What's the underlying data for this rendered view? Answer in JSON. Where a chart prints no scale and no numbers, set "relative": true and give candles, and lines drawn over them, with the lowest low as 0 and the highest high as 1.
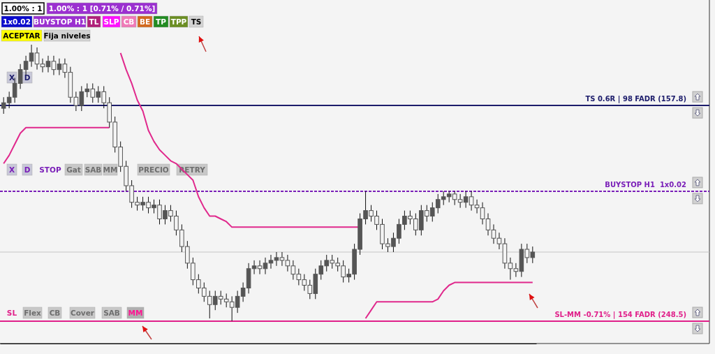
{
  "chart_data": {
    "type": "candlestick",
    "relative": true,
    "color": "#555555",
    "categories": [
      null,
      null,
      null,
      null,
      null,
      null,
      null,
      null,
      null,
      null,
      null,
      null,
      null,
      null,
      null,
      null,
      null,
      null,
      null,
      null,
      null,
      null,
      null,
      null,
      null,
      null,
      null,
      null,
      null,
      null,
      null,
      null,
      null,
      null,
      null,
      null,
      null,
      null,
      null,
      null,
      null,
      null,
      null,
      null,
      null,
      null,
      null,
      null,
      null,
      null,
      null,
      null,
      null,
      null,
      null,
      null,
      null,
      null,
      null,
      null,
      null,
      null,
      null,
      null,
      null,
      null,
      null,
      null,
      null,
      null,
      null,
      null,
      null,
      null,
      null,
      null,
      null,
      null,
      null,
      null,
      null,
      null,
      null,
      null,
      null,
      null,
      null,
      null,
      null,
      null,
      null,
      null,
      null,
      null,
      null,
      null
    ],
    "ohlc": [
      [
        0.77,
        0.81,
        0.75,
        0.79
      ],
      [
        0.79,
        0.83,
        0.77,
        0.81
      ],
      [
        0.81,
        0.88,
        0.79,
        0.86
      ],
      [
        0.86,
        0.93,
        0.84,
        0.91
      ],
      [
        0.91,
        0.96,
        0.89,
        0.94
      ],
      [
        0.94,
        1,
        0.92,
        0.97
      ],
      [
        0.97,
        0.99,
        0.91,
        0.93
      ],
      [
        0.93,
        0.95,
        0.9,
        0.92
      ],
      [
        0.92,
        0.96,
        0.9,
        0.94
      ],
      [
        0.94,
        0.96,
        0.89,
        0.91
      ],
      [
        0.91,
        0.95,
        0.89,
        0.93
      ],
      [
        0.93,
        0.95,
        0.88,
        0.9
      ],
      [
        0.9,
        0.92,
        0.79,
        0.81
      ],
      [
        0.81,
        0.83,
        0.76,
        0.78
      ],
      [
        0.78,
        0.85,
        0.76,
        0.83
      ],
      [
        0.83,
        0.86,
        0.81,
        0.84
      ],
      [
        0.84,
        0.86,
        0.79,
        0.81
      ],
      [
        0.81,
        0.85,
        0.79,
        0.83
      ],
      [
        0.83,
        0.85,
        0.77,
        0.79
      ],
      [
        0.79,
        0.81,
        0.7,
        0.72
      ],
      [
        0.72,
        0.74,
        0.61,
        0.63
      ],
      [
        0.63,
        0.65,
        0.54,
        0.56
      ],
      [
        0.56,
        0.58,
        0.47,
        0.49
      ],
      [
        0.49,
        0.51,
        0.41,
        0.43
      ],
      [
        0.43,
        0.45,
        0.4,
        0.42
      ],
      [
        0.42,
        0.45,
        0.4,
        0.43
      ],
      [
        0.43,
        0.45,
        0.39,
        0.41
      ],
      [
        0.41,
        0.44,
        0.39,
        0.42
      ],
      [
        0.42,
        0.44,
        0.35,
        0.37
      ],
      [
        0.37,
        0.42,
        0.35,
        0.4
      ],
      [
        0.4,
        0.42,
        0.36,
        0.38
      ],
      [
        0.38,
        0.4,
        0.31,
        0.33
      ],
      [
        0.33,
        0.35,
        0.25,
        0.27
      ],
      [
        0.27,
        0.29,
        0.19,
        0.21
      ],
      [
        0.21,
        0.23,
        0.13,
        0.15
      ],
      [
        0.15,
        0.17,
        0.1,
        0.12
      ],
      [
        0.12,
        0.14,
        0.07,
        0.09
      ],
      [
        0.09,
        0.11,
        0.01,
        0.06
      ],
      [
        0.06,
        0.11,
        0.04,
        0.09
      ],
      [
        0.09,
        0.11,
        0.06,
        0.08
      ],
      [
        0.08,
        0.1,
        0.05,
        0.07
      ],
      [
        0.07,
        0.09,
        0,
        0.05
      ],
      [
        0.05,
        0.11,
        0.03,
        0.09
      ],
      [
        0.09,
        0.14,
        0.07,
        0.12
      ],
      [
        0.12,
        0.21,
        0.1,
        0.19
      ],
      [
        0.19,
        0.22,
        0.17,
        0.2
      ],
      [
        0.2,
        0.22,
        0.17,
        0.19
      ],
      [
        0.19,
        0.23,
        0.17,
        0.21
      ],
      [
        0.21,
        0.24,
        0.19,
        0.22
      ],
      [
        0.22,
        0.25,
        0.2,
        0.23
      ],
      [
        0.23,
        0.25,
        0.2,
        0.22
      ],
      [
        0.22,
        0.24,
        0.18,
        0.2
      ],
      [
        0.2,
        0.22,
        0.15,
        0.17
      ],
      [
        0.17,
        0.19,
        0.13,
        0.15
      ],
      [
        0.15,
        0.17,
        0.11,
        0.13
      ],
      [
        0.13,
        0.15,
        0.08,
        0.1
      ],
      [
        0.1,
        0.19,
        0.08,
        0.17
      ],
      [
        0.17,
        0.22,
        0.15,
        0.2
      ],
      [
        0.2,
        0.24,
        0.18,
        0.22
      ],
      [
        0.22,
        0.24,
        0.19,
        0.21
      ],
      [
        0.21,
        0.23,
        0.18,
        0.2
      ],
      [
        0.2,
        0.22,
        0.14,
        0.16
      ],
      [
        0.16,
        0.19,
        0.14,
        0.17
      ],
      [
        0.17,
        0.28,
        0.15,
        0.26
      ],
      [
        0.26,
        0.39,
        0.24,
        0.37
      ],
      [
        0.37,
        0.47,
        0.35,
        0.4
      ],
      [
        0.4,
        0.42,
        0.36,
        0.38
      ],
      [
        0.38,
        0.4,
        0.33,
        0.35
      ],
      [
        0.35,
        0.37,
        0.26,
        0.28
      ],
      [
        0.28,
        0.3,
        0.25,
        0.27
      ],
      [
        0.27,
        0.32,
        0.25,
        0.3
      ],
      [
        0.3,
        0.37,
        0.28,
        0.35
      ],
      [
        0.35,
        0.4,
        0.33,
        0.38
      ],
      [
        0.38,
        0.4,
        0.35,
        0.37
      ],
      [
        0.37,
        0.39,
        0.31,
        0.33
      ],
      [
        0.33,
        0.42,
        0.31,
        0.4
      ],
      [
        0.4,
        0.42,
        0.36,
        0.38
      ],
      [
        0.38,
        0.43,
        0.36,
        0.41
      ],
      [
        0.41,
        0.46,
        0.39,
        0.44
      ],
      [
        0.44,
        0.47,
        0.42,
        0.45
      ],
      [
        0.45,
        0.47,
        0.43,
        0.46
      ],
      [
        0.46,
        0.47,
        0.42,
        0.44
      ],
      [
        0.44,
        0.46,
        0.41,
        0.43
      ],
      [
        0.43,
        0.47,
        0.41,
        0.45
      ],
      [
        0.45,
        0.47,
        0.4,
        0.42
      ],
      [
        0.42,
        0.44,
        0.39,
        0.41
      ],
      [
        0.41,
        0.43,
        0.35,
        0.37
      ],
      [
        0.37,
        0.39,
        0.31,
        0.33
      ],
      [
        0.33,
        0.35,
        0.28,
        0.3
      ],
      [
        0.3,
        0.32,
        0.26,
        0.28
      ],
      [
        0.28,
        0.3,
        0.19,
        0.21
      ],
      [
        0.21,
        0.23,
        0.15,
        0.19
      ],
      [
        0.19,
        0.21,
        0.16,
        0.18
      ],
      [
        0.18,
        0.28,
        0.16,
        0.26
      ],
      [
        0.26,
        0.28,
        0.21,
        0.23
      ],
      [
        0.23,
        0.27,
        0.21,
        0.25
      ]
    ],
    "series": [
      {
        "type": "line",
        "color": "#e0288c",
        "values": [
          0.57,
          0.6,
          0.64,
          0.68,
          0.7,
          0.7,
          0.7,
          0.7,
          0.7,
          0.7,
          0.7,
          0.7,
          0.7,
          0.7,
          0.7,
          0.7,
          0.7,
          0.7,
          0.7,
          0.7,
          null,
          null,
          null,
          null,
          null,
          null,
          null,
          null,
          null,
          null,
          null,
          null,
          null,
          null,
          null,
          null,
          null,
          null,
          null,
          null,
          null,
          null,
          null,
          null,
          null,
          null,
          null,
          null,
          null,
          null,
          null,
          null,
          null,
          null,
          null,
          null,
          null,
          null,
          null,
          null,
          null,
          null,
          null,
          null,
          null,
          null,
          null,
          null,
          null,
          null,
          null,
          null,
          null,
          null,
          null,
          null,
          null,
          null,
          null,
          null,
          null,
          null,
          null,
          null,
          null,
          null,
          null,
          null,
          null,
          null,
          null,
          null,
          null,
          null,
          null,
          null
        ]
      },
      {
        "type": "line",
        "color": "#e0288c",
        "values": [
          null,
          null,
          null,
          null,
          null,
          null,
          null,
          null,
          null,
          null,
          null,
          null,
          null,
          null,
          null,
          null,
          null,
          null,
          null,
          null,
          null,
          0.97,
          0.91,
          0.86,
          0.8,
          0.76,
          0.69,
          0.65,
          0.62,
          0.6,
          0.58,
          0.57,
          0.55,
          0.53,
          0.51,
          0.45,
          0.41,
          0.38,
          0.38,
          0.37,
          0.36,
          0.34,
          0.34,
          0.34,
          0.34,
          0.34,
          0.34,
          0.34,
          0.34,
          0.34,
          0.34,
          0.34,
          0.34,
          0.34,
          0.34,
          0.34,
          0.34,
          0.34,
          0.34,
          0.34,
          0.34,
          0.34,
          0.34,
          0.34,
          0.34,
          null,
          null,
          null,
          null,
          null,
          null,
          null,
          null,
          null,
          null,
          null,
          null,
          null,
          null,
          null,
          null,
          null,
          null,
          null,
          null,
          null,
          null,
          null,
          null,
          null,
          null,
          null,
          null,
          null,
          null,
          null
        ]
      },
      {
        "type": "line",
        "color": "#e0288c",
        "values": [
          null,
          null,
          null,
          null,
          null,
          null,
          null,
          null,
          null,
          null,
          null,
          null,
          null,
          null,
          null,
          null,
          null,
          null,
          null,
          null,
          null,
          null,
          null,
          null,
          null,
          null,
          null,
          null,
          null,
          null,
          null,
          null,
          null,
          null,
          null,
          null,
          null,
          null,
          null,
          null,
          null,
          null,
          null,
          null,
          null,
          null,
          null,
          null,
          null,
          null,
          null,
          null,
          null,
          null,
          null,
          null,
          null,
          null,
          null,
          null,
          null,
          null,
          null,
          null,
          null,
          0.01,
          0.04,
          0.07,
          0.07,
          0.07,
          0.07,
          0.07,
          0.07,
          0.07,
          0.07,
          0.07,
          0.07,
          0.07,
          0.08,
          0.11,
          0.13,
          0.14,
          0.14,
          0.14,
          0.14,
          0.14,
          0.14,
          0.14,
          0.14,
          0.14,
          0.14,
          0.14,
          0.14,
          0.14,
          0.14,
          0.14
        ]
      }
    ],
    "ref_lines": [
      {
        "axis": "y",
        "value": 0.78,
        "label": "TS 0.6R | 98 FADR (157.8)",
        "color": "#1c1c6b",
        "line_style": "solid"
      },
      {
        "axis": "y",
        "value": 0.47,
        "label": "BUYSTOP H1  1x0.02",
        "color": "#7a1fb8",
        "line_style": "dashed"
      },
      {
        "axis": "y",
        "value": 0.25,
        "color": "#c4c4c4",
        "line_style": "solid"
      },
      {
        "axis": "y",
        "value": 0,
        "label": "SL-MM -0.71% | 154 FADR (248.5)",
        "color": "#e0208a",
        "line_style": "solid"
      }
    ],
    "annotations": [
      "1.00% : 1",
      "1.00% : 1 [0.71% / 0.71%]",
      "1x0.02",
      "BUYSTOP H1",
      "TL",
      "SLP",
      "CB",
      "BE",
      "TP",
      "TPP",
      "TS",
      "ACEPTAR",
      "Fija niveles",
      "X",
      "D",
      "X",
      "D",
      "STOP",
      "Gat",
      "SAB",
      "MM",
      "PRECIO",
      "RETRY",
      "SL",
      "Flex",
      "CB",
      "Cover",
      "SAB",
      "MM"
    ]
  }
}
